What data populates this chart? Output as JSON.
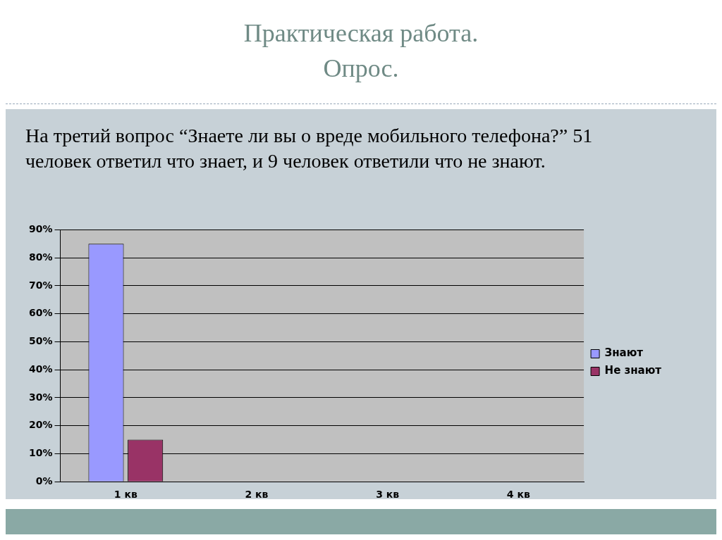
{
  "chart_data": {
    "type": "bar",
    "title": "Практическая работа. Опрос.",
    "subtitle": "На третий вопрос “Знаете ли вы о вреде мобильного телефона?” 51 человек ответил что знает, и 9 человек ответили что не знают.",
    "categories": [
      "1 кв",
      "2 кв",
      "3 кв",
      "4 кв"
    ],
    "series": [
      {
        "name": "Знают",
        "color": "#9999ff",
        "values": [
          85,
          null,
          null,
          null
        ]
      },
      {
        "name": "Не знают",
        "color": "#993366",
        "values": [
          15,
          null,
          null,
          null
        ]
      }
    ],
    "ylim": [
      0,
      90
    ],
    "yticks": [
      {
        "value": 0,
        "label": "0%"
      },
      {
        "value": 10,
        "label": "10%"
      },
      {
        "value": 20,
        "label": "20%"
      },
      {
        "value": 30,
        "label": "30%"
      },
      {
        "value": 40,
        "label": "40%"
      },
      {
        "value": 50,
        "label": "50%"
      },
      {
        "value": 60,
        "label": "60%"
      },
      {
        "value": 70,
        "label": "70%"
      },
      {
        "value": 80,
        "label": "80%"
      },
      {
        "value": 90,
        "label": "90%"
      }
    ],
    "grid": "y",
    "legend": "right"
  }
}
